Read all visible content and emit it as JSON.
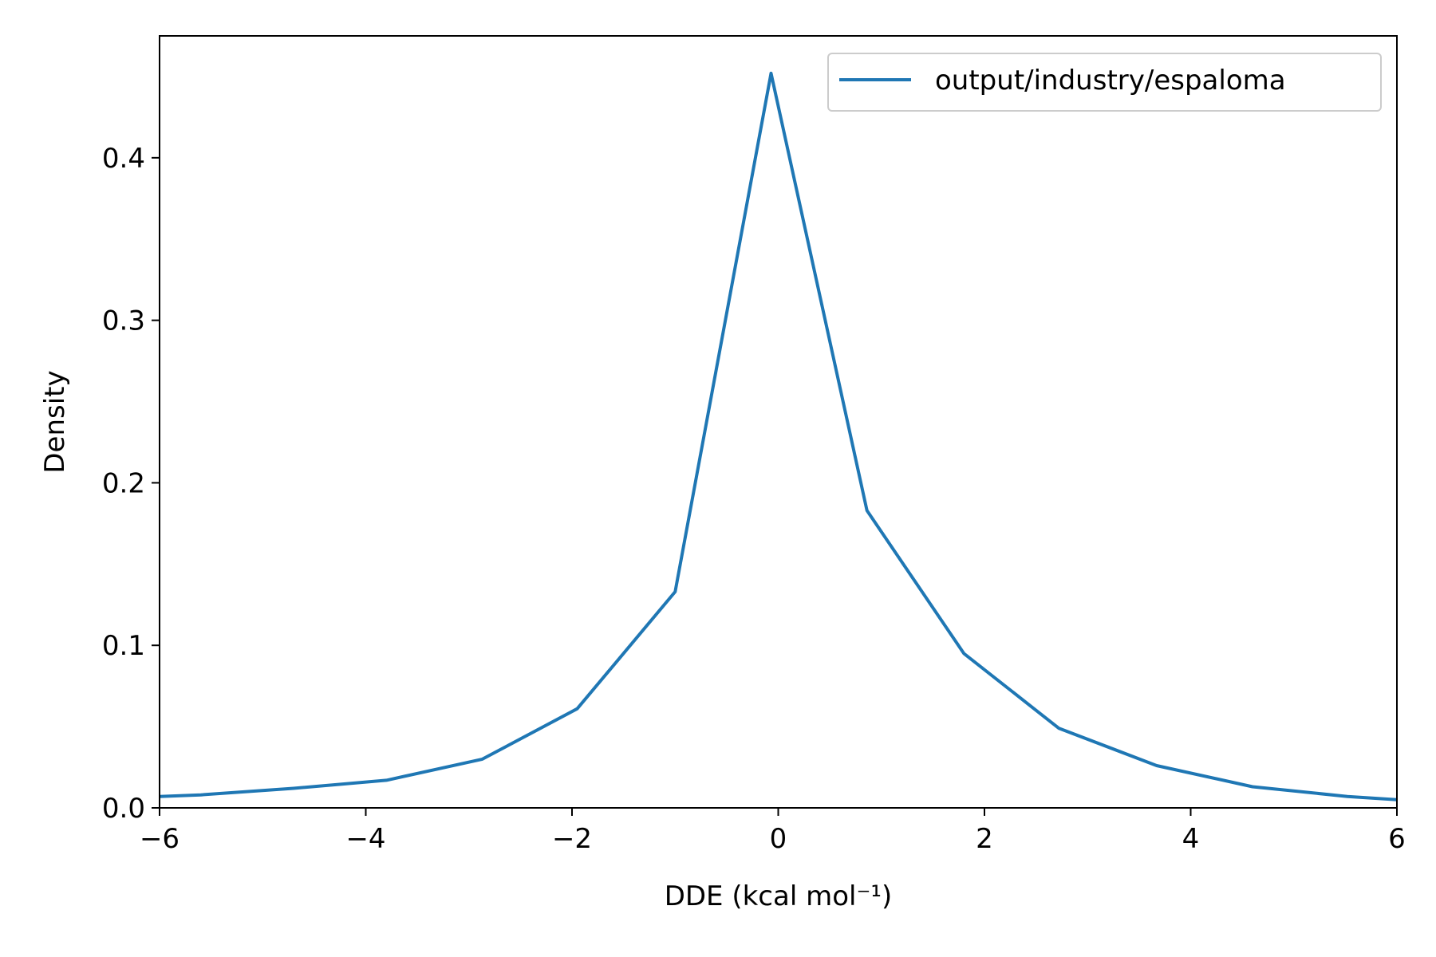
{
  "chart_data": {
    "type": "line",
    "title": "",
    "xlabel": "DDE (kcal mol⁻¹)",
    "ylabel": "Density",
    "xlim": [
      -6,
      6
    ],
    "ylim": [
      0,
      0.475
    ],
    "xticks": [
      -6,
      -4,
      -2,
      0,
      2,
      4,
      6
    ],
    "xtick_labels": [
      "−6",
      "−4",
      "−2",
      "0",
      "2",
      "4",
      "6"
    ],
    "yticks": [
      0.0,
      0.1,
      0.2,
      0.3,
      0.4
    ],
    "ytick_labels": [
      "0.0",
      "0.1",
      "0.2",
      "0.3",
      "0.4"
    ],
    "grid": false,
    "legend_position": "top-right",
    "series": [
      {
        "name": "output/industry/espaloma",
        "color": "#1f77b4",
        "x": [
          -6.0,
          -5.6,
          -4.7,
          -3.8,
          -2.87,
          -1.95,
          -1.0,
          -0.07,
          0.86,
          1.8,
          2.72,
          3.67,
          4.6,
          5.52,
          6.0
        ],
        "y": [
          0.007,
          0.008,
          0.012,
          0.017,
          0.03,
          0.061,
          0.133,
          0.452,
          0.183,
          0.095,
          0.049,
          0.026,
          0.013,
          0.007,
          0.005
        ]
      }
    ]
  }
}
